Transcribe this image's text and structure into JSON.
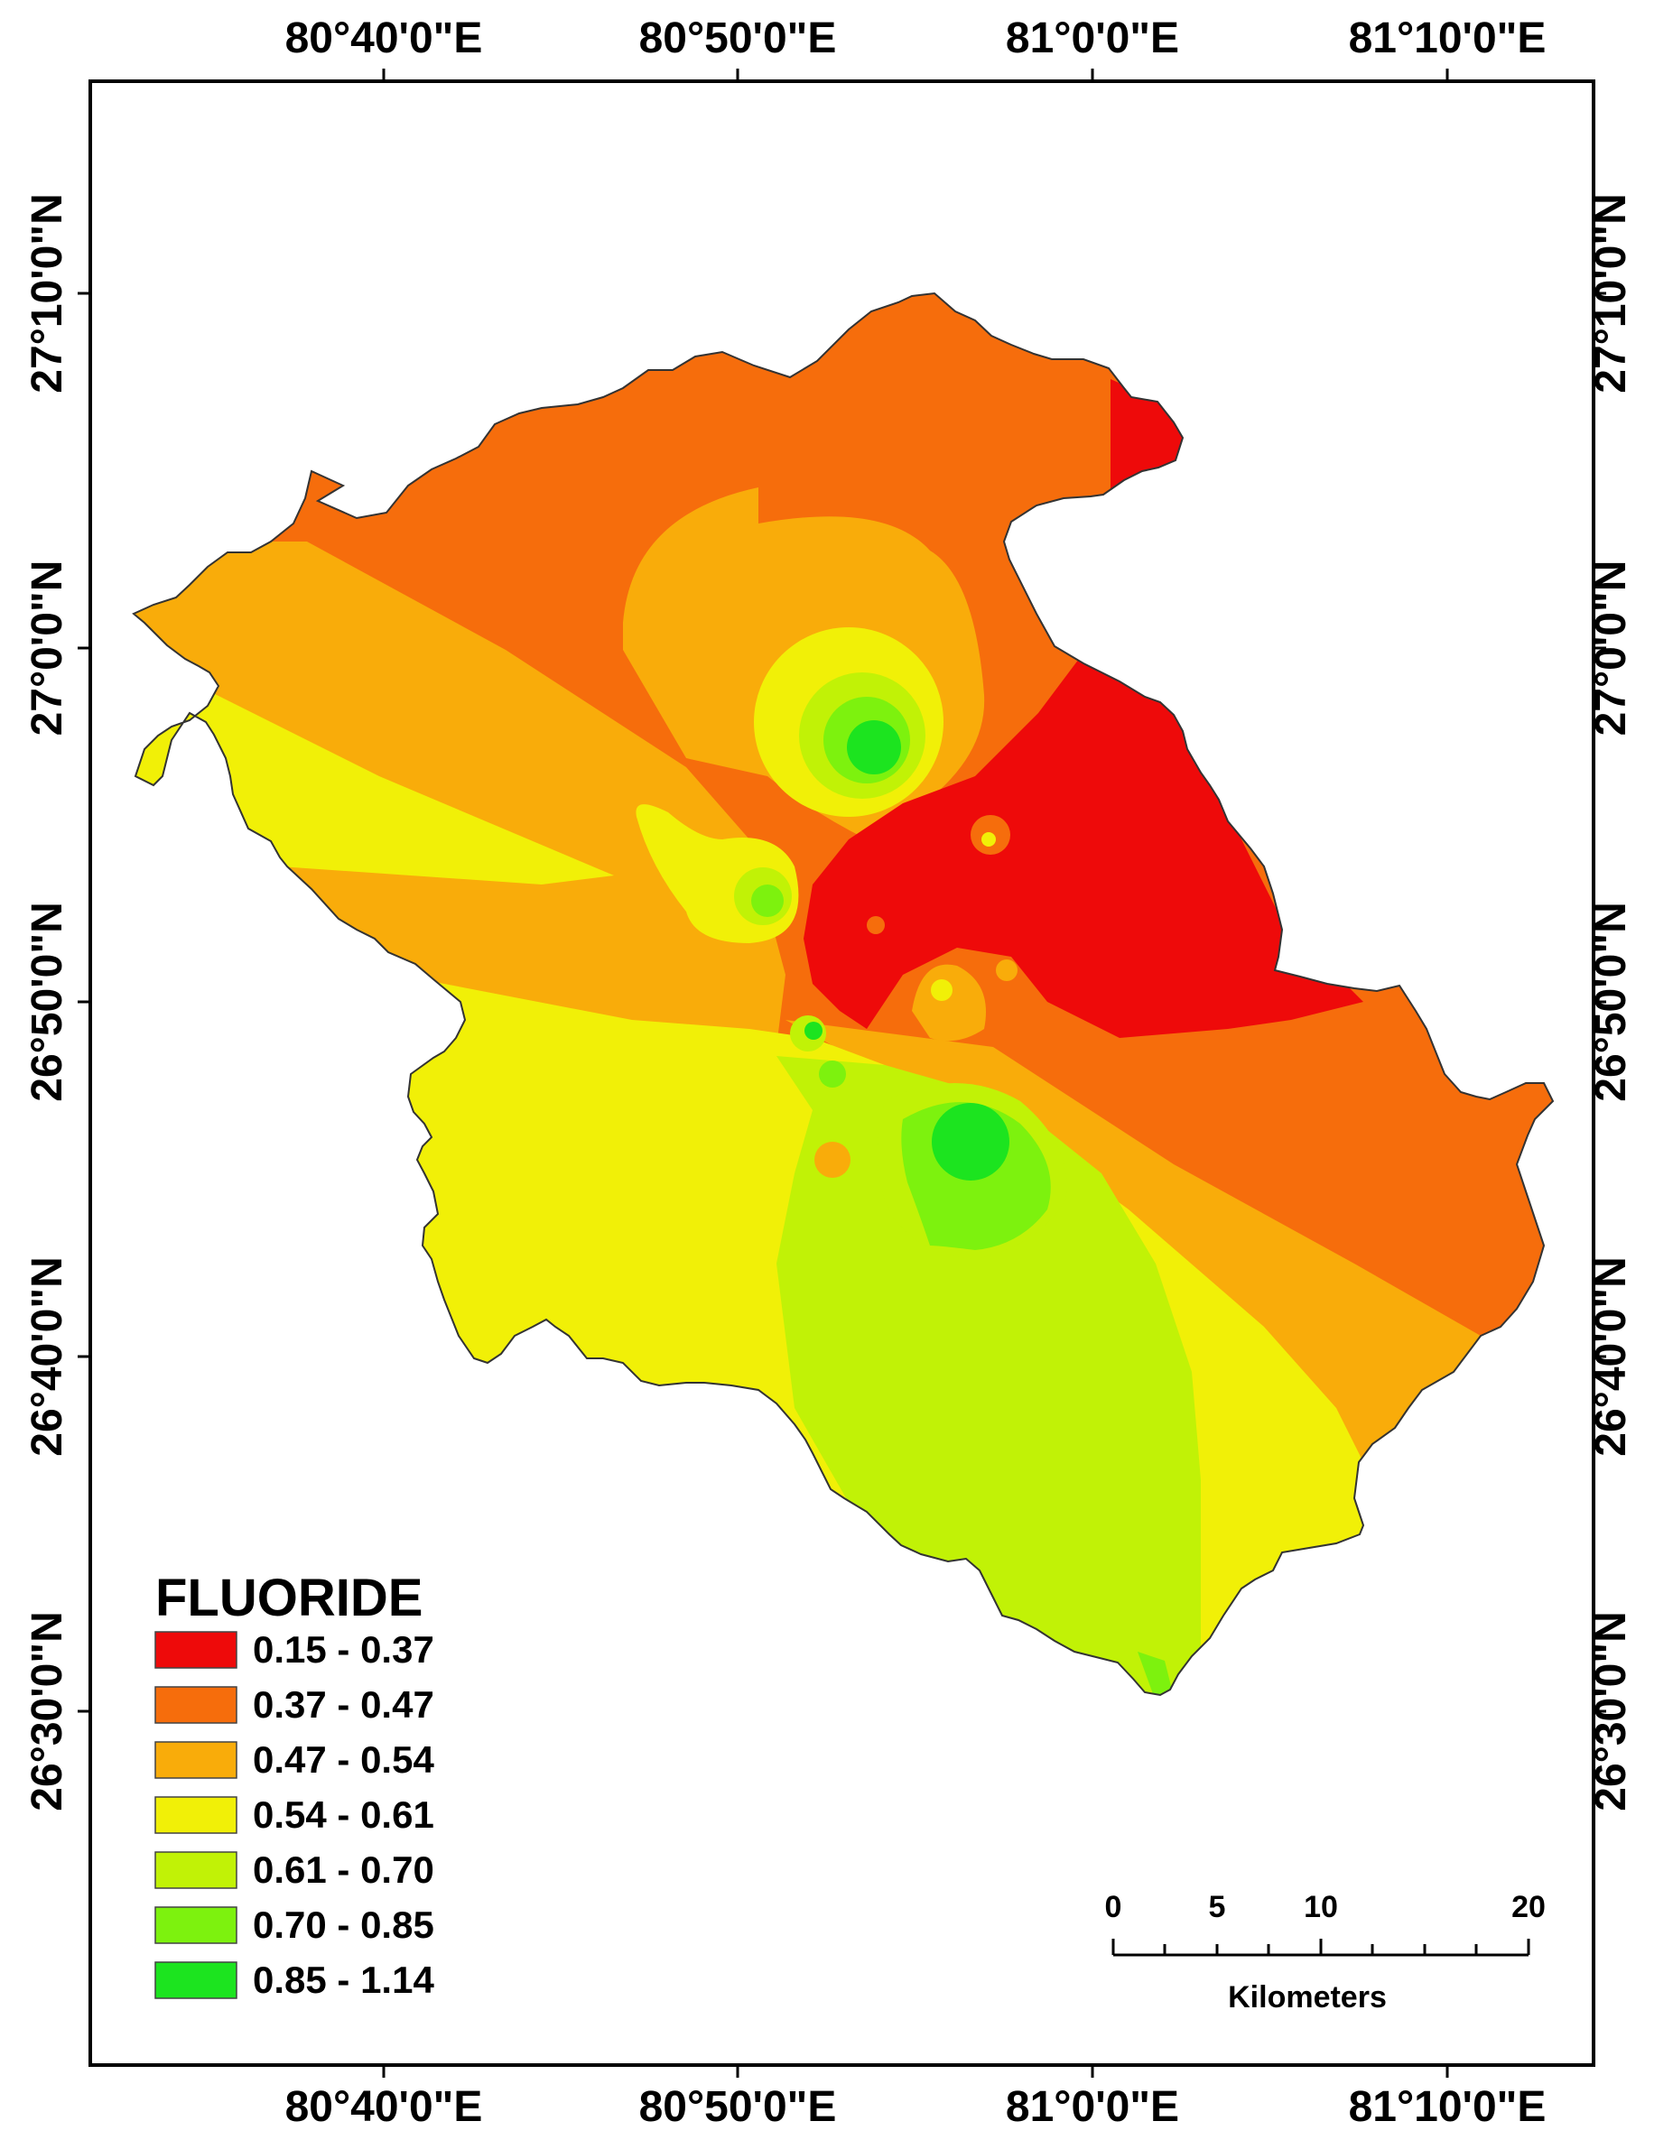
{
  "map": {
    "longitude_labels": [
      "80°40'0\"E",
      "80°50'0\"E",
      "81°0'0\"E",
      "81°10'0\"E"
    ],
    "latitude_labels": [
      "27°10'0\"N",
      "27°0'0\"N",
      "26°50'0\"N",
      "26°40'0\"N",
      "26°30'0\"N"
    ]
  },
  "legend": {
    "title": "FLUORIDE",
    "classes": [
      {
        "label": "0.15 - 0.37",
        "color": "#ee0a0a"
      },
      {
        "label": "0.37 - 0.47",
        "color": "#f66d0c"
      },
      {
        "label": "0.47 - 0.54",
        "color": "#f9ac0a"
      },
      {
        "label": "0.54 - 0.61",
        "color": "#f1f007"
      },
      {
        "label": "0.61 - 0.70",
        "color": "#c1f206"
      },
      {
        "label": "0.70 - 0.85",
        "color": "#7df20e"
      },
      {
        "label": "0.85 - 1.14",
        "color": "#1ce41f"
      }
    ]
  },
  "scale_bar": {
    "ticks": [
      "0",
      "5",
      "10",
      "20"
    ],
    "unit": "Kilometers"
  }
}
